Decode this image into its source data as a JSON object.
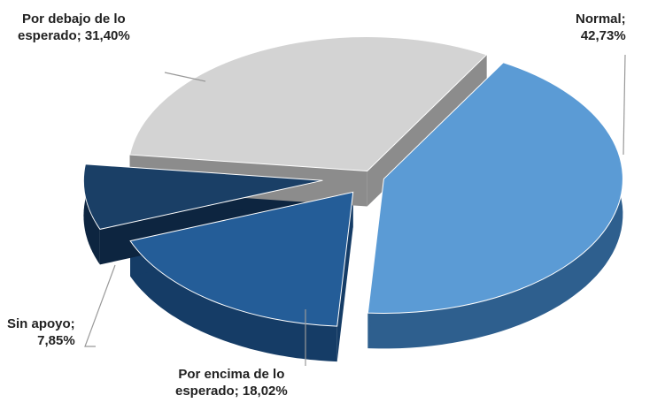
{
  "chart_data": {
    "type": "pie",
    "style": "3d-exploded",
    "series": [
      {
        "label_line1": "Normal;",
        "label_line2": "42,73%",
        "value": 42.73,
        "color": "#5b9bd5",
        "side_color": "#2e5f8e"
      },
      {
        "label_line1": "Por encima de lo",
        "label_line2": "esperado; 18,02%",
        "value": 18.02,
        "color": "#245d98",
        "side_color": "#153c66"
      },
      {
        "label_line1": "Sin apoyo;",
        "label_line2": "7,85%",
        "value": 7.85,
        "color": "#1a3f66",
        "side_color": "#0d2540"
      },
      {
        "label_line1": "Por debajo de lo",
        "label_line2": "esperado; 31,40%",
        "value": 31.4,
        "color": "#d3d3d3",
        "side_color": "#8c8c8c"
      }
    ],
    "legend": "none",
    "title": ""
  }
}
